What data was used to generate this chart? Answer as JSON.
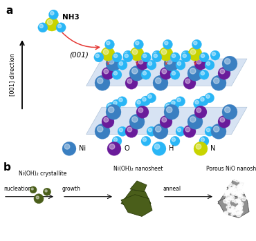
{
  "fig_width": 3.7,
  "fig_height": 3.49,
  "dpi": 100,
  "bg_color": "#ffffff",
  "panel_a_label": "a",
  "panel_b_label": "b",
  "legend_items": [
    {
      "label": "Ni",
      "color": "#3a7fc1"
    },
    {
      "label": "O",
      "color": "#6a1b9a"
    },
    {
      "label": "H",
      "color": "#29b6f6"
    },
    {
      "label": "N",
      "color": "#c8d400"
    }
  ],
  "direction_label": "[001] direction",
  "nh3_label": "NH3",
  "face_label": "(001)",
  "b_labels": {
    "crystallite": "Ni(OH)₂ crystallite",
    "nanosheet": "Ni(OH)₂ nanosheet",
    "porous": "Porous NiO nanosheet",
    "nucleation": "nucleation",
    "growth": "growth",
    "anneal": "anneal"
  },
  "ni_color": "#3a7fc1",
  "o_color": "#6a1b9a",
  "h_color": "#29b6f6",
  "n_color": "#c8d400",
  "bond_color": "#222222",
  "red_arrow_color": "#e53935",
  "plane_color": "#b0c8e8",
  "plane_alpha": 0.5,
  "arrow_color": "#000000",
  "green_dark": "#4a5e1a",
  "gray_color": "#909090"
}
